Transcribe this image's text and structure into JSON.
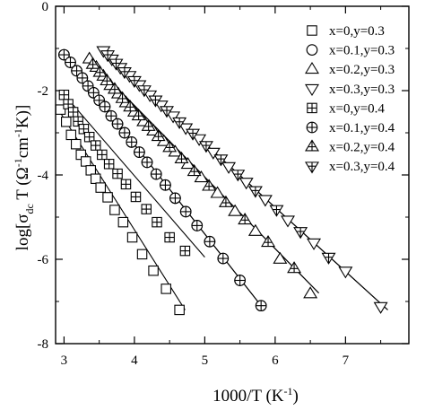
{
  "chart_data": {
    "type": "scatter",
    "title": "",
    "xlabel": "1000/T (K",
    "xlabel_sup": "-1",
    "xlabel_tail": ")",
    "ylabel": {
      "prefix": "log[σ",
      "sub": "dc",
      "mid": " T (Ω",
      "sup1": "-1",
      "mid2": "cm",
      "sup2": "-1",
      "suffix": "K)]"
    },
    "xlim": [
      2.88,
      7.9
    ],
    "ylim": [
      -8,
      0
    ],
    "xticks": [
      3,
      4,
      5,
      6,
      7
    ],
    "yticks": [
      0,
      -2,
      -4,
      -6,
      -8
    ],
    "grid": false,
    "legend_position": "top-right",
    "series": [
      {
        "name": "x=0,y=0.3",
        "marker": "square",
        "fit": [
          2.92,
          -2.45,
          4.72,
          -7.2
        ],
        "x": [
          2.95,
          3.03,
          3.1,
          3.17,
          3.24,
          3.31,
          3.38,
          3.45,
          3.52,
          3.62,
          3.72,
          3.84,
          3.97,
          4.11,
          4.27,
          4.45,
          4.64
        ],
        "y": [
          -2.45,
          -2.74,
          -3.05,
          -3.27,
          -3.52,
          -3.68,
          -3.89,
          -4.09,
          -4.3,
          -4.53,
          -4.83,
          -5.12,
          -5.48,
          -5.88,
          -6.27,
          -6.7,
          -7.2
        ]
      },
      {
        "name": "x=0.1,y=0.3",
        "marker": "circle",
        "fit": [
          3.0,
          -1.15,
          5.8,
          -7.1
        ],
        "x": [
          3.0,
          3.09,
          3.18,
          3.26,
          3.34,
          3.42,
          3.5,
          3.58,
          3.67,
          3.76,
          3.86,
          3.96,
          4.07,
          4.18,
          4.31,
          4.44,
          4.58,
          4.73,
          4.89,
          5.07,
          5.26,
          5.5,
          5.8
        ],
        "y": [
          -1.15,
          -1.33,
          -1.53,
          -1.7,
          -1.89,
          -2.05,
          -2.23,
          -2.38,
          -2.6,
          -2.79,
          -3.0,
          -3.22,
          -3.46,
          -3.7,
          -3.98,
          -4.24,
          -4.55,
          -4.87,
          -5.2,
          -5.58,
          -5.98,
          -6.5,
          -7.1
        ]
      },
      {
        "name": "x=0.2,y=0.3",
        "marker": "triangle-up",
        "fit": [
          3.35,
          -1.25,
          6.62,
          -6.8
        ],
        "x": [
          3.36,
          3.46,
          3.56,
          3.66,
          3.77,
          3.88,
          4.0,
          4.13,
          4.27,
          4.42,
          4.58,
          4.76,
          4.95,
          5.18,
          5.43,
          5.72,
          6.07,
          6.5
        ],
        "y": [
          -1.25,
          -1.45,
          -1.66,
          -1.88,
          -2.08,
          -2.29,
          -2.51,
          -2.74,
          -2.96,
          -3.21,
          -3.46,
          -3.75,
          -4.07,
          -4.44,
          -4.87,
          -5.34,
          -6.0,
          -6.82
        ]
      },
      {
        "name": "x=0.3,y=0.3",
        "marker": "triangle-down",
        "fit": [
          3.55,
          -1.05,
          7.6,
          -7.2
        ],
        "x": [
          3.56,
          3.68,
          3.8,
          3.93,
          4.07,
          4.22,
          4.38,
          4.55,
          4.73,
          4.92,
          5.12,
          5.34,
          5.59,
          5.86,
          6.18,
          6.55,
          7.0,
          7.5
        ],
        "y": [
          -1.05,
          -1.25,
          -1.45,
          -1.64,
          -1.86,
          -2.1,
          -2.34,
          -2.6,
          -2.88,
          -3.14,
          -3.46,
          -3.8,
          -4.17,
          -4.58,
          -5.07,
          -5.61,
          -6.28,
          -7.12
        ]
      },
      {
        "name": "x=0,y=0.4",
        "marker": "square-plus",
        "fit": [
          2.98,
          -2.05,
          5.0,
          -5.95
        ],
        "x": [
          3.0,
          3.06,
          3.13,
          3.2,
          3.28,
          3.36,
          3.45,
          3.54,
          3.64,
          3.76,
          3.88,
          4.02,
          4.17,
          4.32,
          4.5,
          4.72
        ],
        "y": [
          -2.1,
          -2.32,
          -2.51,
          -2.73,
          -2.91,
          -3.1,
          -3.3,
          -3.52,
          -3.74,
          -3.97,
          -4.22,
          -4.52,
          -4.81,
          -5.12,
          -5.48,
          -5.8
        ]
      },
      {
        "name": "x=0.1,y=0.4",
        "marker": "circle-plus",
        "fit": [
          3.0,
          -1.15,
          5.8,
          -7.1
        ],
        "x": [
          3.0,
          3.09,
          3.18,
          3.26,
          3.34,
          3.42,
          3.5,
          3.58,
          3.67,
          3.76,
          3.86,
          3.96,
          4.07,
          4.18,
          4.31,
          4.44,
          4.58,
          4.73,
          4.89,
          5.07,
          5.26,
          5.5,
          5.8
        ],
        "y": [
          -1.15,
          -1.33,
          -1.53,
          -1.7,
          -1.89,
          -2.05,
          -2.23,
          -2.38,
          -2.6,
          -2.79,
          -3.0,
          -3.22,
          -3.46,
          -3.7,
          -3.98,
          -4.24,
          -4.55,
          -4.87,
          -5.2,
          -5.58,
          -5.98,
          -6.5,
          -7.1
        ]
      },
      {
        "name": "x=0.2,y=0.4",
        "marker": "triangle-up-plus",
        "fit": [
          3.35,
          -1.25,
          6.62,
          -6.8
        ],
        "x": [
          3.41,
          3.51,
          3.61,
          3.72,
          3.83,
          3.94,
          4.06,
          4.2,
          4.34,
          4.5,
          4.67,
          4.85,
          5.06,
          5.3,
          5.57,
          5.9,
          6.27
        ],
        "y": [
          -1.38,
          -1.57,
          -1.77,
          -1.97,
          -2.19,
          -2.39,
          -2.6,
          -2.85,
          -3.09,
          -3.35,
          -3.62,
          -3.92,
          -4.27,
          -4.66,
          -5.07,
          -5.6,
          -6.22
        ]
      },
      {
        "name": "x=0.3,y=0.4",
        "marker": "triangle-down-plus",
        "fit": [
          3.55,
          -1.05,
          7.6,
          -7.2
        ],
        "x": [
          3.62,
          3.74,
          3.86,
          4.0,
          4.14,
          4.3,
          4.46,
          4.64,
          4.83,
          5.02,
          5.23,
          5.47,
          5.72,
          6.02,
          6.36,
          6.76
        ],
        "y": [
          -1.15,
          -1.35,
          -1.55,
          -1.76,
          -1.98,
          -2.22,
          -2.47,
          -2.74,
          -3.01,
          -3.3,
          -3.62,
          -3.98,
          -4.37,
          -4.82,
          -5.34,
          -5.95
        ]
      }
    ]
  }
}
